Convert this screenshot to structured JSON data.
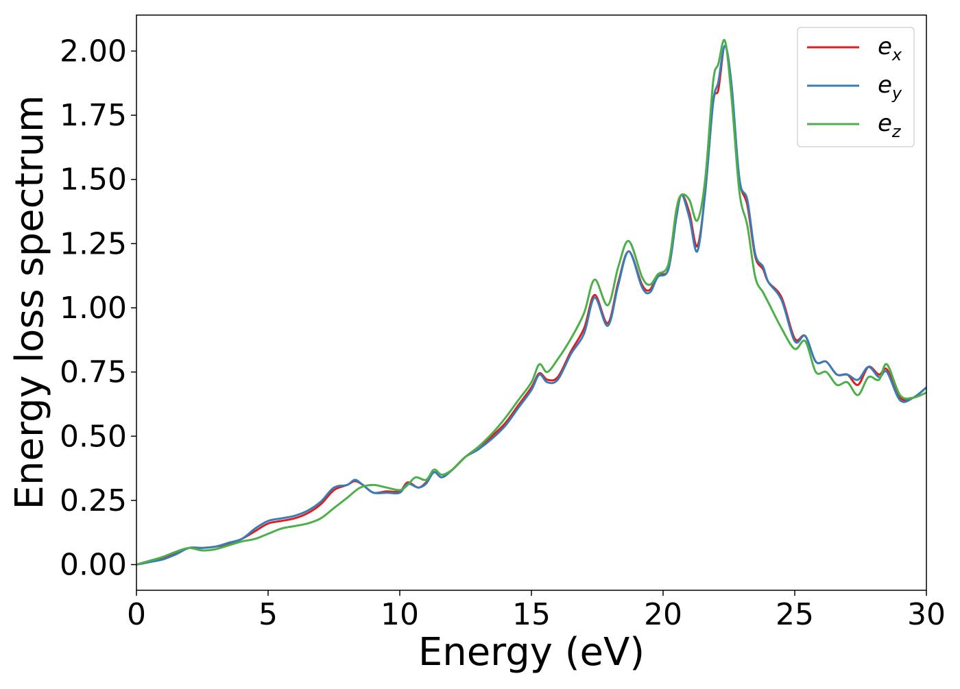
{
  "chart_data": {
    "type": "line",
    "title": "",
    "xlabel": "Energy (eV)",
    "ylabel": "Energy loss spectrum",
    "xlim": [
      0,
      30
    ],
    "ylim": [
      -0.1,
      2.14
    ],
    "xticks": [
      0,
      5,
      10,
      15,
      20,
      25,
      30
    ],
    "xtick_labels": [
      "0",
      "5",
      "10",
      "15",
      "20",
      "25",
      "30"
    ],
    "yticks": [
      0,
      0.25,
      0.5,
      0.75,
      1.0,
      1.25,
      1.5,
      1.75,
      2.0
    ],
    "ytick_labels": [
      "0.00",
      "0.25",
      "0.50",
      "0.75",
      "1.00",
      "1.25",
      "1.50",
      "1.75",
      "2.00"
    ],
    "grid": false,
    "legend_position": "top-right",
    "series": [
      {
        "name": "e",
        "subscript": "x",
        "color": "#e41a1c",
        "points": [
          [
            0,
            0
          ],
          [
            0.5,
            0.01
          ],
          [
            1,
            0.025
          ],
          [
            1.5,
            0.045
          ],
          [
            2,
            0.065
          ],
          [
            2.5,
            0.065
          ],
          [
            3,
            0.07
          ],
          [
            3.5,
            0.08
          ],
          [
            4,
            0.1
          ],
          [
            4.5,
            0.13
          ],
          [
            5,
            0.16
          ],
          [
            5.5,
            0.17
          ],
          [
            6,
            0.18
          ],
          [
            6.5,
            0.2
          ],
          [
            7,
            0.235
          ],
          [
            7.5,
            0.29
          ],
          [
            8,
            0.31
          ],
          [
            8.3,
            0.325
          ],
          [
            8.6,
            0.31
          ],
          [
            9,
            0.28
          ],
          [
            9.5,
            0.285
          ],
          [
            10,
            0.285
          ],
          [
            10.3,
            0.32
          ],
          [
            10.7,
            0.3
          ],
          [
            11,
            0.32
          ],
          [
            11.3,
            0.36
          ],
          [
            11.6,
            0.34
          ],
          [
            12,
            0.37
          ],
          [
            12.5,
            0.42
          ],
          [
            13,
            0.45
          ],
          [
            13.5,
            0.5
          ],
          [
            14,
            0.55
          ],
          [
            14.5,
            0.62
          ],
          [
            15,
            0.69
          ],
          [
            15.3,
            0.745
          ],
          [
            15.6,
            0.72
          ],
          [
            16,
            0.73
          ],
          [
            16.5,
            0.83
          ],
          [
            17,
            0.92
          ],
          [
            17.4,
            1.05
          ],
          [
            17.9,
            0.94
          ],
          [
            18.3,
            1.1
          ],
          [
            18.7,
            1.22
          ],
          [
            19.2,
            1.09
          ],
          [
            19.5,
            1.07
          ],
          [
            19.8,
            1.13
          ],
          [
            20.2,
            1.15
          ],
          [
            20.5,
            1.35
          ],
          [
            20.7,
            1.44
          ],
          [
            21,
            1.37
          ],
          [
            21.3,
            1.24
          ],
          [
            21.6,
            1.45
          ],
          [
            21.9,
            1.8
          ],
          [
            22.1,
            1.85
          ],
          [
            22.35,
            2.02
          ],
          [
            22.6,
            1.85
          ],
          [
            22.9,
            1.5
          ],
          [
            23.2,
            1.4
          ],
          [
            23.5,
            1.2
          ],
          [
            23.8,
            1.15
          ],
          [
            24,
            1.1
          ],
          [
            24.5,
            1.04
          ],
          [
            25,
            0.88
          ],
          [
            25.4,
            0.89
          ],
          [
            25.8,
            0.79
          ],
          [
            26.2,
            0.79
          ],
          [
            26.6,
            0.74
          ],
          [
            27,
            0.74
          ],
          [
            27.4,
            0.7
          ],
          [
            27.8,
            0.77
          ],
          [
            28.2,
            0.74
          ],
          [
            28.5,
            0.76
          ],
          [
            29,
            0.65
          ],
          [
            29.5,
            0.65
          ],
          [
            30,
            0.69
          ]
        ]
      },
      {
        "name": "e",
        "subscript": "y",
        "color": "#377eb8",
        "points": [
          [
            0,
            0
          ],
          [
            0.5,
            0.01
          ],
          [
            1,
            0.02
          ],
          [
            1.5,
            0.04
          ],
          [
            2,
            0.065
          ],
          [
            2.5,
            0.065
          ],
          [
            3,
            0.07
          ],
          [
            3.5,
            0.085
          ],
          [
            4,
            0.1
          ],
          [
            4.5,
            0.14
          ],
          [
            5,
            0.17
          ],
          [
            5.5,
            0.18
          ],
          [
            6,
            0.19
          ],
          [
            6.5,
            0.21
          ],
          [
            7,
            0.245
          ],
          [
            7.5,
            0.3
          ],
          [
            8,
            0.31
          ],
          [
            8.3,
            0.33
          ],
          [
            8.6,
            0.31
          ],
          [
            9,
            0.28
          ],
          [
            9.5,
            0.28
          ],
          [
            10,
            0.28
          ],
          [
            10.3,
            0.315
          ],
          [
            10.7,
            0.3
          ],
          [
            11,
            0.315
          ],
          [
            11.3,
            0.36
          ],
          [
            11.6,
            0.34
          ],
          [
            12,
            0.37
          ],
          [
            12.5,
            0.42
          ],
          [
            13,
            0.45
          ],
          [
            13.5,
            0.49
          ],
          [
            14,
            0.54
          ],
          [
            14.5,
            0.61
          ],
          [
            15,
            0.68
          ],
          [
            15.3,
            0.74
          ],
          [
            15.6,
            0.71
          ],
          [
            16,
            0.72
          ],
          [
            16.5,
            0.82
          ],
          [
            17,
            0.9
          ],
          [
            17.4,
            1.04
          ],
          [
            17.9,
            0.93
          ],
          [
            18.3,
            1.09
          ],
          [
            18.7,
            1.22
          ],
          [
            19.2,
            1.08
          ],
          [
            19.5,
            1.06
          ],
          [
            19.8,
            1.12
          ],
          [
            20.2,
            1.15
          ],
          [
            20.5,
            1.35
          ],
          [
            20.7,
            1.44
          ],
          [
            21,
            1.35
          ],
          [
            21.3,
            1.22
          ],
          [
            21.6,
            1.45
          ],
          [
            21.9,
            1.8
          ],
          [
            22.1,
            1.88
          ],
          [
            22.35,
            2.02
          ],
          [
            22.6,
            1.87
          ],
          [
            22.9,
            1.5
          ],
          [
            23.2,
            1.42
          ],
          [
            23.5,
            1.21
          ],
          [
            23.8,
            1.16
          ],
          [
            24,
            1.1
          ],
          [
            24.5,
            1.03
          ],
          [
            25,
            0.87
          ],
          [
            25.4,
            0.89
          ],
          [
            25.8,
            0.79
          ],
          [
            26.2,
            0.79
          ],
          [
            26.6,
            0.74
          ],
          [
            27,
            0.74
          ],
          [
            27.4,
            0.72
          ],
          [
            27.8,
            0.77
          ],
          [
            28.2,
            0.73
          ],
          [
            28.5,
            0.75
          ],
          [
            29,
            0.64
          ],
          [
            29.5,
            0.65
          ],
          [
            30,
            0.69
          ]
        ]
      },
      {
        "name": "e",
        "subscript": "z",
        "color": "#4daf4a",
        "points": [
          [
            0,
            0
          ],
          [
            0.5,
            0.015
          ],
          [
            1,
            0.03
          ],
          [
            1.5,
            0.05
          ],
          [
            2,
            0.065
          ],
          [
            2.5,
            0.055
          ],
          [
            3,
            0.06
          ],
          [
            3.5,
            0.075
          ],
          [
            4,
            0.09
          ],
          [
            4.5,
            0.1
          ],
          [
            5,
            0.12
          ],
          [
            5.5,
            0.14
          ],
          [
            6,
            0.15
          ],
          [
            6.5,
            0.16
          ],
          [
            7,
            0.18
          ],
          [
            7.5,
            0.22
          ],
          [
            8,
            0.26
          ],
          [
            8.5,
            0.3
          ],
          [
            9,
            0.31
          ],
          [
            9.5,
            0.3
          ],
          [
            10,
            0.29
          ],
          [
            10.3,
            0.31
          ],
          [
            10.6,
            0.34
          ],
          [
            11,
            0.33
          ],
          [
            11.3,
            0.37
          ],
          [
            11.6,
            0.35
          ],
          [
            12,
            0.37
          ],
          [
            12.5,
            0.42
          ],
          [
            13,
            0.46
          ],
          [
            13.5,
            0.51
          ],
          [
            14,
            0.57
          ],
          [
            14.5,
            0.64
          ],
          [
            15,
            0.71
          ],
          [
            15.3,
            0.78
          ],
          [
            15.6,
            0.75
          ],
          [
            16,
            0.8
          ],
          [
            16.5,
            0.88
          ],
          [
            17,
            0.98
          ],
          [
            17.4,
            1.11
          ],
          [
            17.9,
            1.01
          ],
          [
            18.3,
            1.16
          ],
          [
            18.7,
            1.26
          ],
          [
            19.2,
            1.12
          ],
          [
            19.5,
            1.09
          ],
          [
            19.8,
            1.13
          ],
          [
            20.2,
            1.17
          ],
          [
            20.5,
            1.38
          ],
          [
            20.7,
            1.44
          ],
          [
            21,
            1.42
          ],
          [
            21.3,
            1.34
          ],
          [
            21.6,
            1.5
          ],
          [
            21.9,
            1.88
          ],
          [
            22.1,
            1.95
          ],
          [
            22.35,
            2.04
          ],
          [
            22.6,
            1.82
          ],
          [
            22.9,
            1.45
          ],
          [
            23.2,
            1.32
          ],
          [
            23.5,
            1.12
          ],
          [
            23.8,
            1.06
          ],
          [
            24,
            1.02
          ],
          [
            24.5,
            0.92
          ],
          [
            25,
            0.84
          ],
          [
            25.4,
            0.87
          ],
          [
            25.8,
            0.75
          ],
          [
            26.2,
            0.75
          ],
          [
            26.6,
            0.7
          ],
          [
            27,
            0.71
          ],
          [
            27.4,
            0.66
          ],
          [
            27.8,
            0.73
          ],
          [
            28.2,
            0.72
          ],
          [
            28.5,
            0.78
          ],
          [
            29,
            0.66
          ],
          [
            29.5,
            0.65
          ],
          [
            30,
            0.67
          ]
        ]
      }
    ]
  }
}
